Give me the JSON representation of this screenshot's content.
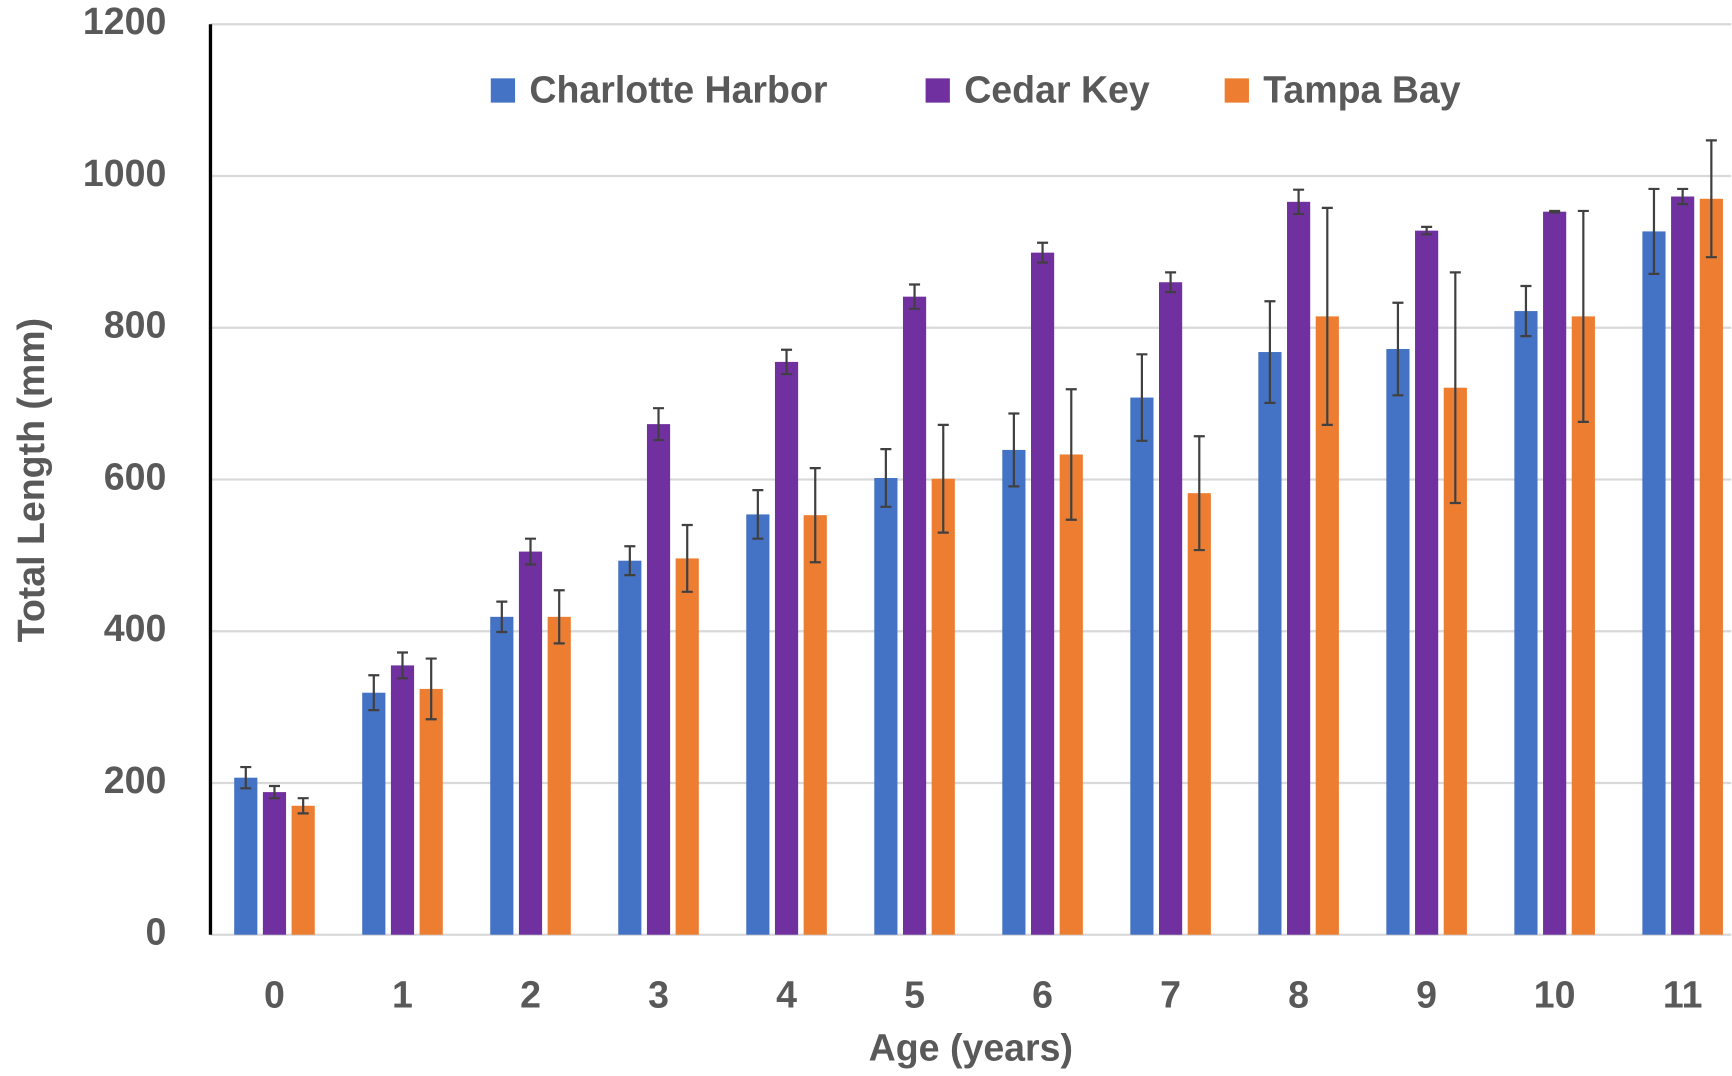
{
  "chart_data": {
    "type": "bar",
    "x_label": "Age (years)",
    "y_label": "Total Length (mm)",
    "categories": [
      "0",
      "1",
      "2",
      "3",
      "4",
      "5",
      "6",
      "7",
      "8",
      "9",
      "10",
      "11"
    ],
    "series": [
      {
        "name": "Charlotte Harbor",
        "color": "#4472c4",
        "values": [
          207,
          319,
          419,
          493,
          554,
          602,
          639,
          708,
          768,
          772,
          822,
          927
        ],
        "errors": [
          14,
          23,
          20,
          19,
          32,
          38,
          48,
          57,
          67,
          61,
          33,
          56
        ]
      },
      {
        "name": "Cedar Key",
        "color": "#7030a0",
        "values": [
          188,
          355,
          505,
          673,
          755,
          841,
          899,
          860,
          966,
          928,
          953,
          973
        ],
        "errors": [
          8,
          17,
          17,
          21,
          16,
          16,
          13,
          13,
          16,
          5,
          1,
          10
        ]
      },
      {
        "name": "Tampa Bay",
        "color": "#ed7d31",
        "values": [
          170,
          324,
          419,
          496,
          553,
          601,
          633,
          582,
          815,
          721,
          815,
          970
        ],
        "errors": [
          10,
          40,
          35,
          44,
          62,
          71,
          86,
          75,
          143,
          152,
          139,
          77
        ]
      }
    ],
    "ylim": [
      0,
      1200
    ],
    "yticks": [
      0,
      200,
      400,
      600,
      800,
      1000,
      1200
    ],
    "grid": true,
    "legend": "top"
  }
}
